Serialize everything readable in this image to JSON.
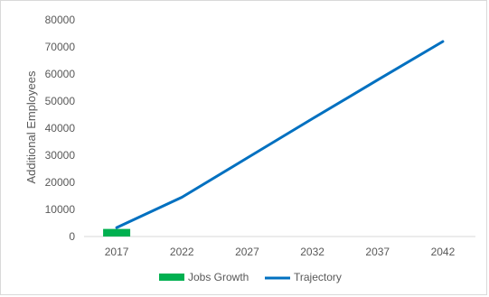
{
  "chart_data": {
    "type": "bar",
    "title": "",
    "xlabel": "",
    "ylabel": "Additional Employees",
    "ylim": [
      0,
      80000
    ],
    "y_ticks": [
      0,
      10000,
      20000,
      30000,
      40000,
      50000,
      60000,
      70000,
      80000
    ],
    "categories": [
      "2017",
      "2022",
      "2027",
      "2032",
      "2037",
      "2042"
    ],
    "grid": false,
    "legend_position": "bottom",
    "series": [
      {
        "name": "Jobs Growth",
        "type": "bar",
        "color": "#00b050",
        "values": [
          2800,
          null,
          null,
          null,
          null,
          null
        ]
      },
      {
        "name": "Trajectory",
        "type": "line",
        "color": "#0070c0",
        "values": [
          3300,
          14500,
          29000,
          43500,
          57800,
          72000
        ]
      }
    ]
  }
}
